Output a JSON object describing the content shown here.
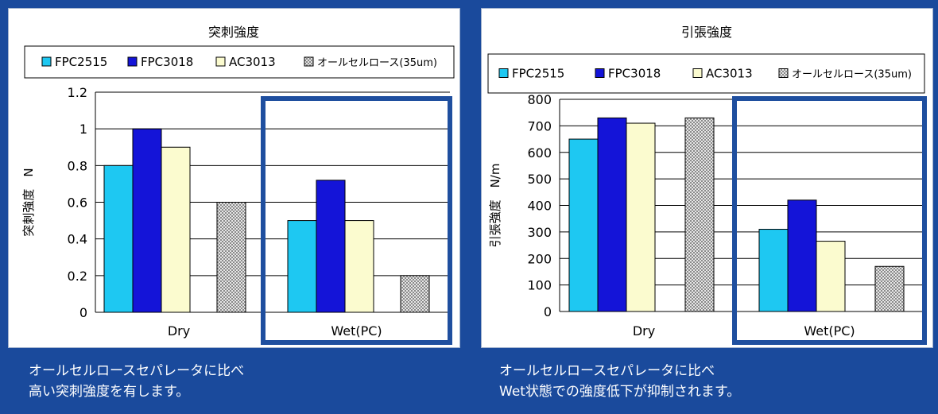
{
  "colors": {
    "background": "#1a4a9c",
    "wet_box": "#1f4f9f",
    "series": [
      "#1ec8f2",
      "#1414d8",
      "#fbfbcf",
      "#d4d4d4"
    ]
  },
  "chart_data": [
    {
      "type": "bar",
      "title": "突刺強度",
      "ylabel": "突刺強度　N",
      "xlabel": "",
      "categories": [
        "Dry",
        "Wet(PC)"
      ],
      "ylim": [
        0,
        1.2
      ],
      "yticks": [
        "0",
        "0.2",
        "0.4",
        "0.6",
        "0.8",
        "1",
        "1.2"
      ],
      "grid": true,
      "legend": "top",
      "series": [
        {
          "name": "FPC2515",
          "values": [
            0.8,
            0.5
          ]
        },
        {
          "name": "FPC3018",
          "values": [
            1.0,
            0.72
          ]
        },
        {
          "name": "AC3013",
          "values": [
            0.9,
            0.5
          ]
        },
        {
          "name": "オールセルロース(35um)",
          "values": [
            0.6,
            0.2
          ]
        }
      ]
    },
    {
      "type": "bar",
      "title": "引張強度",
      "ylabel": "引張強度　N/m",
      "xlabel": "",
      "categories": [
        "Dry",
        "Wet(PC)"
      ],
      "ylim": [
        0,
        800
      ],
      "yticks": [
        "0",
        "100",
        "200",
        "300",
        "400",
        "500",
        "600",
        "700",
        "800"
      ],
      "grid": true,
      "legend": "top",
      "series": [
        {
          "name": "FPC2515",
          "values": [
            650,
            310
          ]
        },
        {
          "name": "FPC3018",
          "values": [
            730,
            420
          ]
        },
        {
          "name": "AC3013",
          "values": [
            710,
            265
          ]
        },
        {
          "name": "オールセルロース(35um)",
          "values": [
            730,
            170
          ]
        }
      ]
    }
  ],
  "captions": {
    "left": [
      "オールセルロースセパレータに比べ",
      "高い突刺強度を有します。"
    ],
    "right": [
      "オールセルロースセパレータに比べ",
      "Wet状態での強度低下が抑制されます。"
    ]
  }
}
